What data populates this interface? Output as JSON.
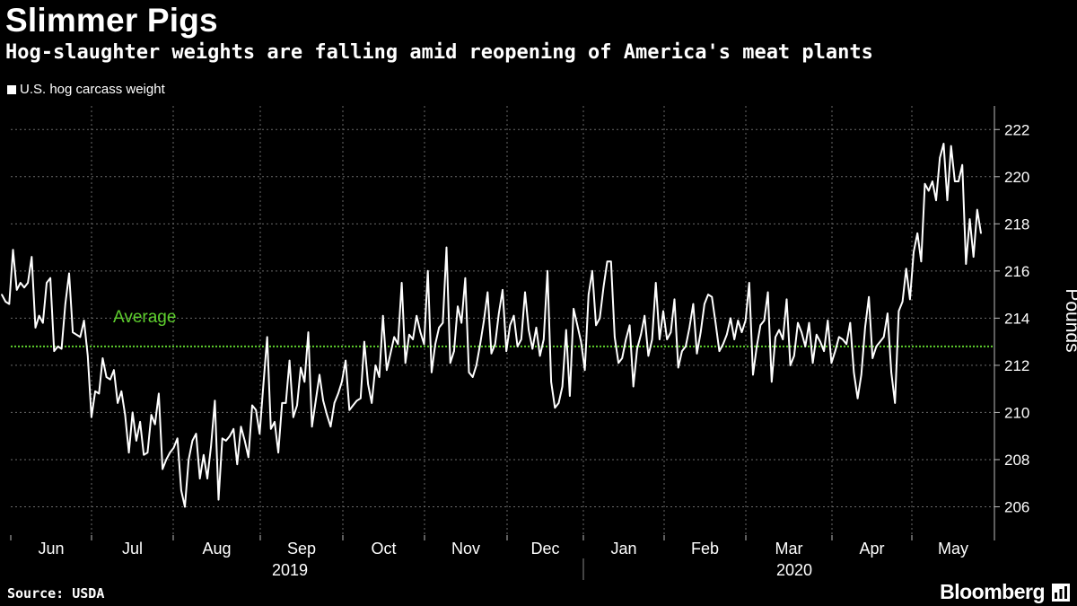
{
  "header": {
    "title": "Slimmer Pigs",
    "subtitle": "Hog-slaughter weights are falling amid reopening of America's meat plants"
  },
  "footer": {
    "source": "Source: USDA",
    "brand": "Bloomberg"
  },
  "colors": {
    "background": "#000000",
    "line": "#ffffff",
    "average": "#5ecf2e",
    "grid": "#6a6a6a"
  },
  "chart_data": {
    "type": "line",
    "title": "Slimmer Pigs",
    "subtitle": "Hog-slaughter weights are falling amid reopening of America's meat plants",
    "ylabel": "Pounds",
    "xlabel": "",
    "ylim": [
      204.8,
      223
    ],
    "yticks": [
      206,
      208,
      210,
      212,
      214,
      216,
      218,
      220,
      222
    ],
    "grid": true,
    "legend": "top-left",
    "series": [
      {
        "name": "U.S. hog carcass weight",
        "values": [
          215.0,
          214.7,
          214.6,
          216.9,
          215.2,
          215.5,
          215.3,
          215.5,
          216.6,
          213.6,
          214.1,
          213.8,
          215.5,
          215.7,
          212.6,
          212.8,
          212.7,
          214.6,
          215.9,
          213.4,
          213.3,
          213.2,
          213.9,
          212.4,
          209.8,
          210.9,
          210.8,
          212.3,
          211.5,
          211.4,
          211.8,
          210.4,
          210.9,
          209.9,
          208.3,
          210.0,
          208.8,
          209.6,
          208.2,
          208.3,
          209.9,
          209.5,
          210.8,
          207.6,
          208.0,
          208.3,
          208.5,
          208.9,
          206.7,
          206.0,
          208.0,
          208.8,
          209.1,
          207.2,
          208.2,
          207.2,
          208.6,
          210.5,
          206.3,
          208.9,
          208.8,
          209.0,
          209.3,
          207.8,
          209.4,
          208.8,
          208.1,
          210.3,
          210.1,
          209.1,
          211.2,
          213.2,
          209.3,
          209.6,
          208.3,
          210.4,
          210.4,
          212.2,
          209.8,
          210.3,
          211.9,
          211.3,
          213.4,
          209.4,
          210.5,
          211.6,
          210.5,
          209.9,
          209.4,
          210.4,
          210.8,
          211.3,
          212.2,
          210.1,
          210.3,
          210.5,
          210.6,
          213.0,
          211.2,
          210.4,
          212.0,
          211.5,
          214.1,
          211.8,
          212.5,
          213.2,
          212.9,
          215.5,
          212.1,
          213.3,
          213.1,
          214.1,
          213.4,
          212.9,
          216.0,
          211.7,
          212.9,
          213.6,
          213.8,
          217.0,
          212.1,
          212.6,
          214.5,
          213.8,
          215.7,
          211.7,
          211.5,
          212.0,
          212.9,
          213.9,
          215.1,
          212.5,
          212.9,
          214.2,
          215.2,
          212.6,
          213.7,
          214.1,
          212.8,
          213.1,
          215.1,
          213.5,
          212.7,
          213.6,
          212.4,
          213.1,
          216.0,
          211.3,
          210.2,
          210.4,
          211.1,
          213.5,
          210.7,
          214.4,
          213.7,
          213.0,
          211.8,
          215.0,
          216.0,
          213.7,
          214.0,
          215.3,
          216.4,
          216.4,
          213.2,
          212.1,
          212.3,
          213.1,
          213.7,
          211.1,
          212.7,
          213.3,
          214.1,
          212.4,
          213.1,
          215.5,
          213.1,
          214.3,
          213.1,
          213.4,
          214.8,
          211.9,
          212.6,
          212.8,
          213.6,
          214.6,
          212.5,
          213.4,
          214.6,
          215.0,
          214.9,
          213.8,
          212.6,
          212.9,
          213.3,
          214.0,
          213.1,
          213.9,
          213.4,
          213.9,
          215.5,
          211.6,
          212.8,
          213.7,
          213.9,
          215.1,
          211.3,
          213.2,
          213.5,
          213.1,
          214.8,
          212.0,
          212.4,
          213.8,
          213.4,
          212.8,
          213.8,
          212.1,
          213.3,
          213.0,
          212.6,
          213.9,
          212.1,
          212.6,
          213.2,
          213.1,
          212.9,
          213.8,
          211.7,
          210.6,
          211.6,
          213.6,
          214.9,
          212.3,
          212.8,
          213.0,
          213.2,
          214.2,
          211.7,
          210.4,
          214.3,
          214.7,
          216.1,
          214.8,
          216.8,
          217.6,
          216.4,
          219.7,
          219.4,
          219.8,
          219.0,
          220.8,
          221.4,
          219.0,
          221.3,
          219.8,
          219.8,
          220.5,
          216.3,
          218.2,
          216.6,
          218.6,
          217.6
        ]
      }
    ],
    "average": {
      "label": "Average",
      "value": 212.8
    },
    "months": [
      "Jun",
      "Jul",
      "Aug",
      "Sep",
      "Oct",
      "Nov",
      "Dec",
      "Jan",
      "Feb",
      "Mar",
      "Apr",
      "May"
    ],
    "years": [
      "2019",
      "2020"
    ]
  }
}
